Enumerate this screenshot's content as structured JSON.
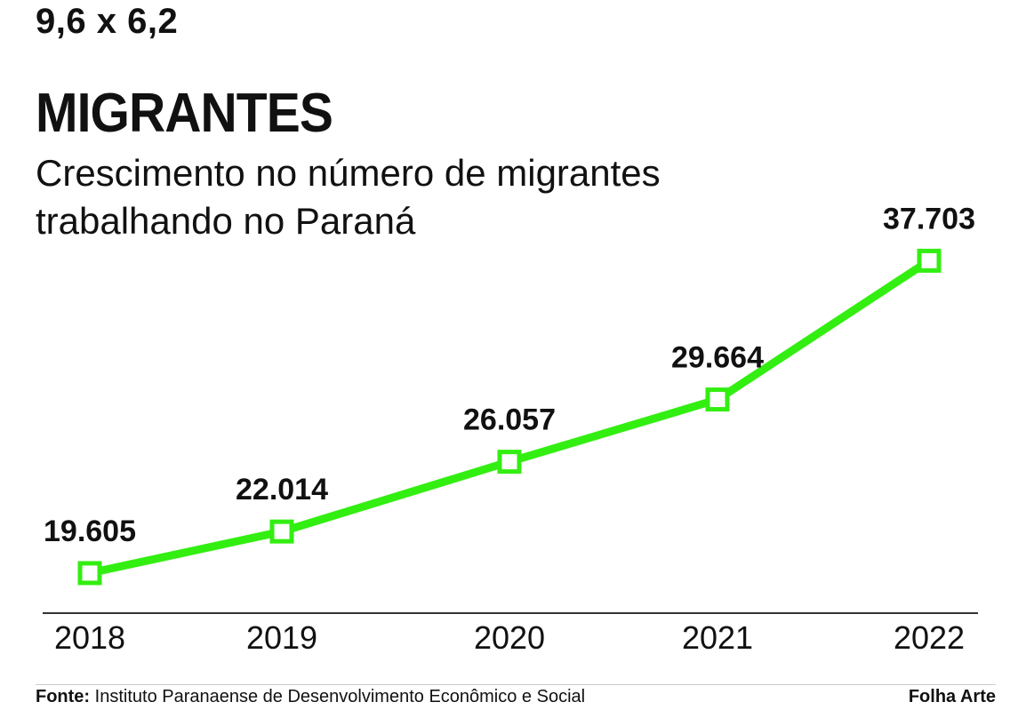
{
  "size_tag": "9,6 x 6,2",
  "header": {
    "title": "MIGRANTES",
    "subtitle_line1": "Crescimento no número de migrantes",
    "subtitle_line2": "trabalhando no Paraná"
  },
  "footer": {
    "source_label": "Fonte:",
    "source_text": "Instituto Paranaense de Desenvolvimento Econômico e Social",
    "credit": "Folha Arte"
  },
  "colors": {
    "line": "#33ee11",
    "axis": "#333333",
    "text": "#111111"
  },
  "chart_data": {
    "type": "line",
    "categories": [
      "2018",
      "2019",
      "2020",
      "2021",
      "2022"
    ],
    "values": [
      19605,
      22014,
      26057,
      29664,
      37703
    ],
    "value_labels": [
      "19.605",
      "22.014",
      "26.057",
      "29.664",
      "37.703"
    ],
    "title": "MIGRANTES",
    "subtitle": "Crescimento no número de migrantes trabalhando no Paraná",
    "xlabel": "",
    "ylabel": "",
    "grid": false,
    "legend": "none"
  }
}
